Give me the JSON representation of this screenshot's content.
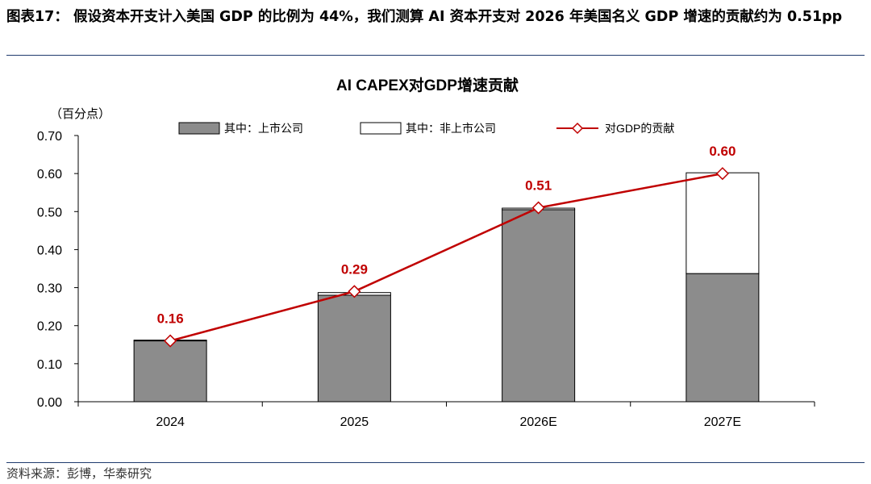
{
  "figure": {
    "title": "图表17： 假设资本开支计入美国 GDP 的比例为 44%，我们测算 AI 资本开支对 2026 年美国名义 GDP 增速的贡献约为 0.51pp",
    "source": "资料来源：彭博，华泰研究"
  },
  "chart_data": {
    "type": "bar",
    "title": "AI CAPEX对GDP增速贡献",
    "ylabel": "（百分点）",
    "xlabel": "",
    "categories": [
      "2024",
      "2025",
      "2026E",
      "2027E"
    ],
    "ylim": [
      0,
      0.7
    ],
    "yticks": [
      "0.00",
      "0.10",
      "0.20",
      "0.30",
      "0.40",
      "0.50",
      "0.60",
      "0.70"
    ],
    "stacked": true,
    "series": [
      {
        "name": "其中：上市公司",
        "kind": "bar",
        "color": "#8c8c8c",
        "values": [
          0.16,
          0.28,
          0.505,
          0.337
        ]
      },
      {
        "name": "其中：非上市公司",
        "kind": "bar",
        "color": "#ffffff",
        "values": [
          0.002,
          0.007,
          0.004,
          0.265
        ]
      },
      {
        "name": "对GDP的贡献",
        "kind": "line",
        "color": "#c00000",
        "values": [
          0.16,
          0.29,
          0.51,
          0.6
        ]
      }
    ],
    "data_labels": [
      "0.16",
      "0.29",
      "0.51",
      "0.60"
    ],
    "legend": "top",
    "grid": false
  }
}
